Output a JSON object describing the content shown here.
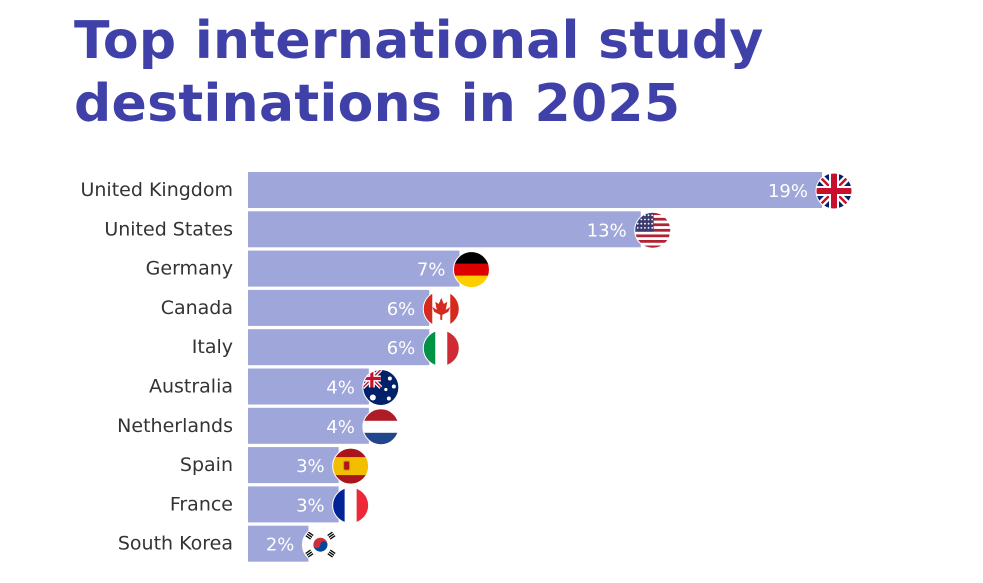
{
  "chart_data": {
    "type": "bar",
    "orientation": "horizontal",
    "title_lines": [
      "Top international study",
      "destinations in 2025"
    ],
    "categories": [
      "United Kingdom",
      "United States",
      "Germany",
      "Canada",
      "Italy",
      "Australia",
      "Netherlands",
      "Spain",
      "France",
      "South Korea"
    ],
    "values": [
      19,
      13,
      7,
      6,
      6,
      4,
      4,
      3,
      3,
      2
    ],
    "value_labels": [
      "19%",
      "13%",
      "7%",
      "6%",
      "6%",
      "4%",
      "4%",
      "3%",
      "3%",
      "2%"
    ],
    "flags": [
      "uk-flag-icon",
      "us-flag-icon",
      "germany-flag-icon",
      "canada-flag-icon",
      "italy-flag-icon",
      "australia-flag-icon",
      "netherlands-flag-icon",
      "spain-flag-icon",
      "france-flag-icon",
      "south-korea-flag-icon"
    ],
    "unit": "%",
    "xlim": [
      0,
      19
    ],
    "xlabel": "",
    "ylabel": "",
    "grid": false,
    "legend": "none"
  },
  "colors": {
    "title": "#3f41a8",
    "bar": "#9fa6d9",
    "value_text": "#ffffff",
    "category_text": "#333333"
  }
}
